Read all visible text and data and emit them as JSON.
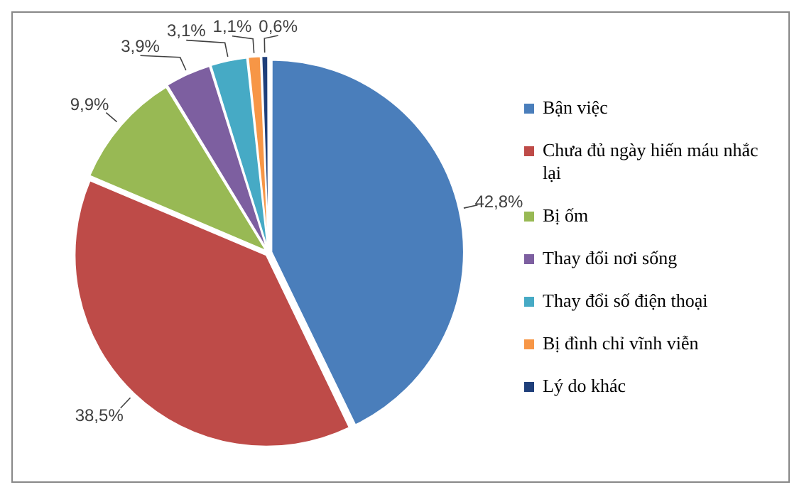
{
  "chart_data": {
    "type": "pie",
    "categories": [
      "Bận việc",
      "Chưa đủ ngày hiến máu nhắc lại",
      "Bị ốm",
      "Thay đổi nơi sống",
      "Thay đổi số điện thoại",
      "Bị đình chỉ vĩnh viễn",
      "Lý do khác"
    ],
    "values": [
      42.8,
      38.5,
      9.9,
      3.9,
      3.1,
      1.1,
      0.6
    ],
    "colors": [
      "#4a7ebb",
      "#be4b48",
      "#98b954",
      "#7d5fa0",
      "#46aac5",
      "#f79646",
      "#1f3f7a"
    ],
    "value_labels": [
      "42,8%",
      "38,5%",
      "9,9%",
      "3,9%",
      "3,1%",
      "1,1%",
      "0,6%"
    ],
    "legend": "right"
  }
}
